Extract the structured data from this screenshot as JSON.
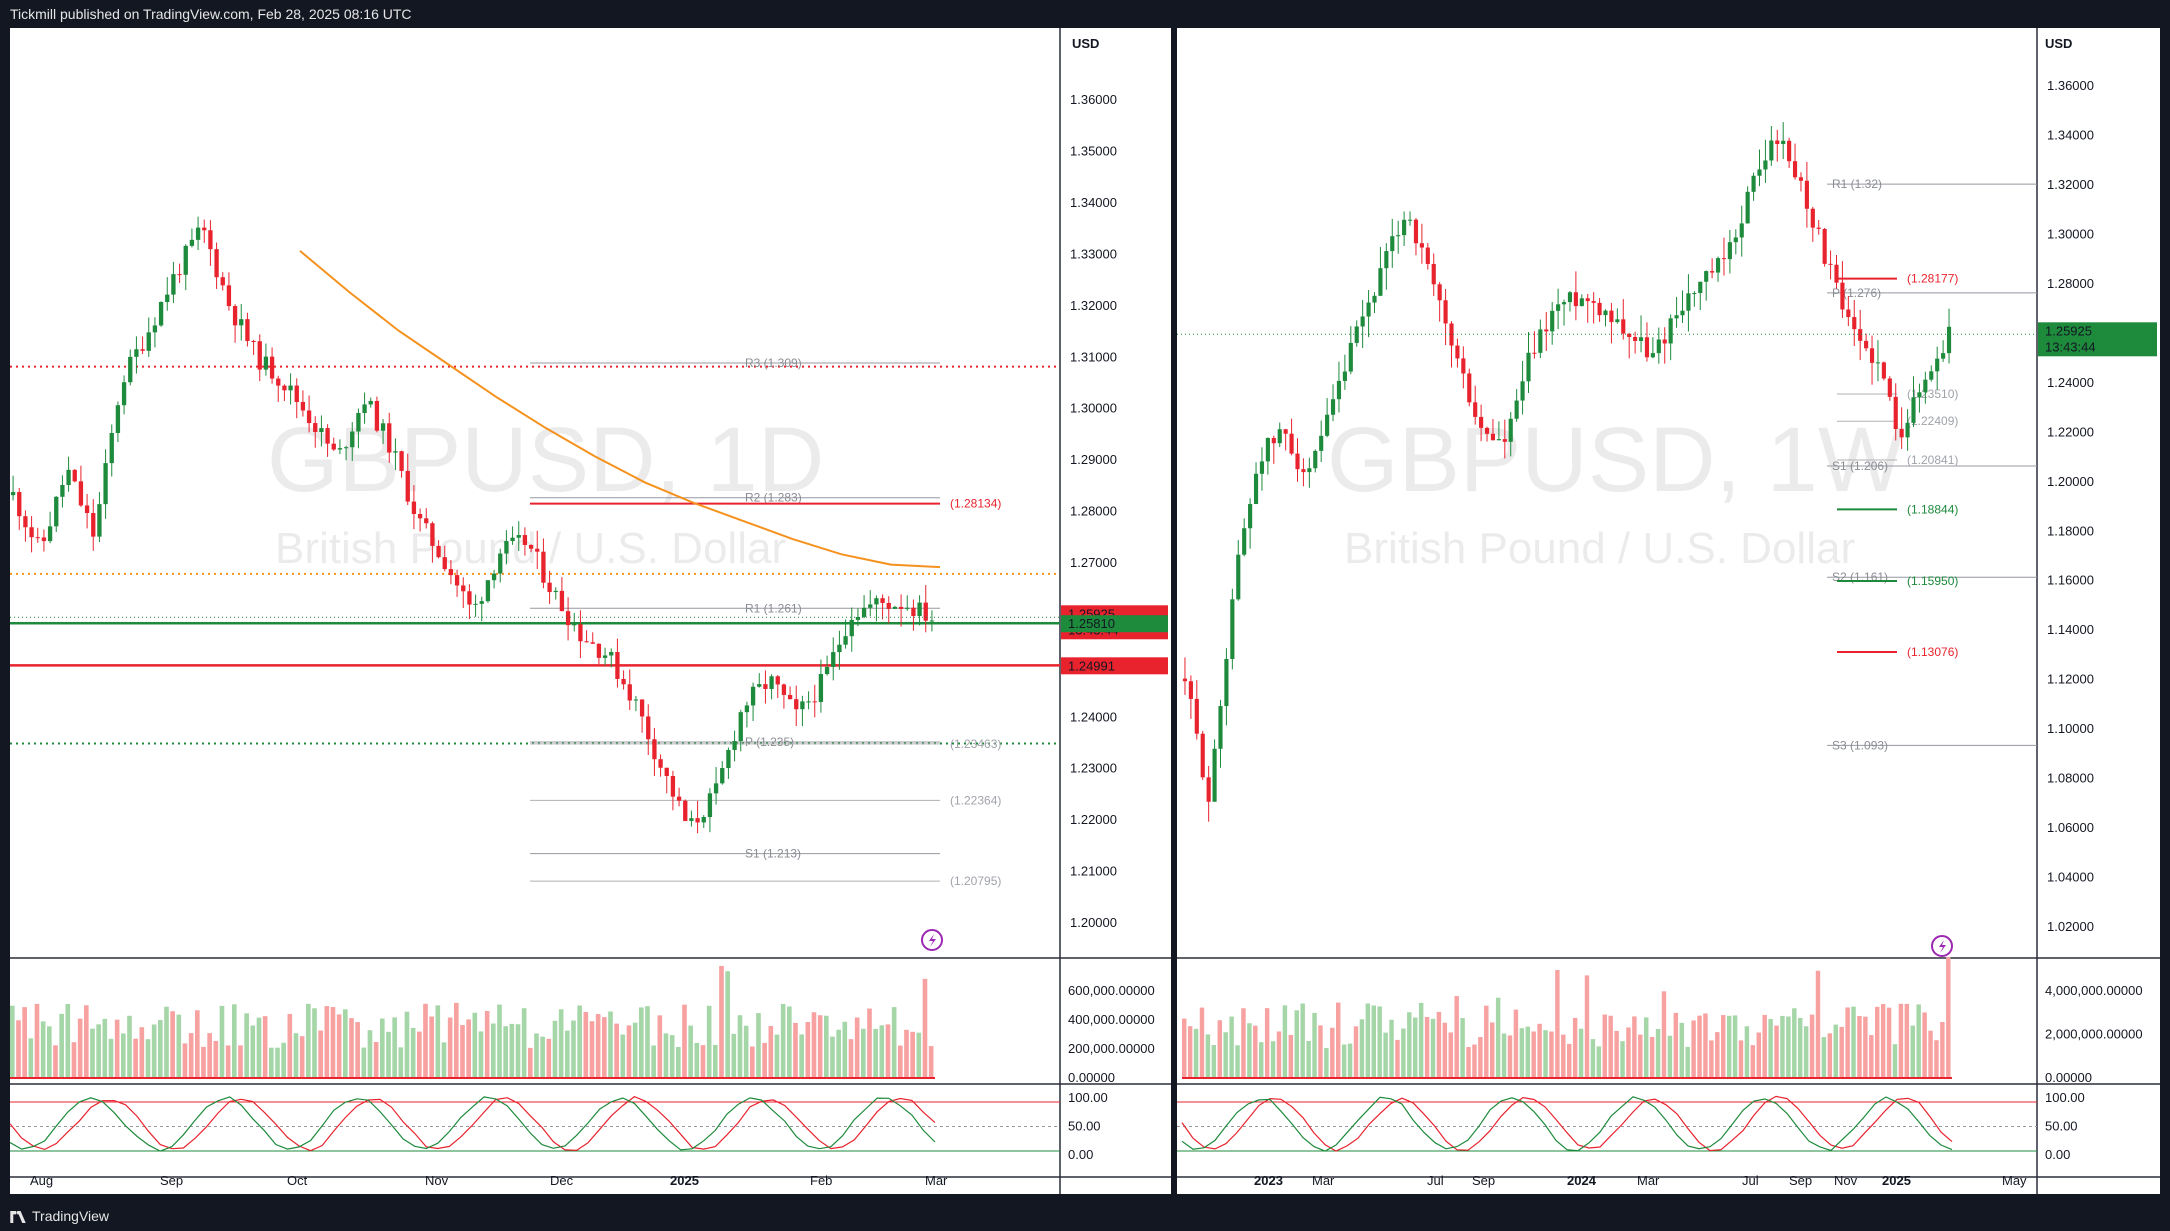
{
  "header": {
    "publisher": "Tickmill published on TradingView.com, Feb 28, 2025 08:16 UTC"
  },
  "footer": {
    "brand": "TradingView"
  },
  "colors": {
    "up": "#1e8a3c",
    "down": "#e8232e",
    "ma": "#f5921e",
    "vol_up": "#a5d6a7",
    "vol_down": "#f7a1a1",
    "background": "#ffffff",
    "frame": "#131722"
  },
  "icons": {
    "publish_badge": "lightning-icon",
    "arrow_up": "arrow-up-icon",
    "arrow_down": "arrow-down-icon",
    "brand": "tradingview-logo-icon"
  },
  "charts": [
    {
      "id": "daily",
      "watermark": {
        "symbol": "GBPUSD, 1D",
        "name": "British Pound / U.S. Dollar"
      },
      "currency": "USD",
      "price_ticks": [
        "1.36000",
        "1.35000",
        "1.34000",
        "1.33000",
        "1.32000",
        "1.31000",
        "1.30000",
        "1.29000",
        "1.28000",
        "1.27000",
        "1.26000",
        "1.25000",
        "1.24000",
        "1.23000",
        "1.22000",
        "1.21000",
        "1.20000"
      ],
      "ylim": [
        1.193,
        1.368
      ],
      "volume_ticks": [
        "600,000.00000",
        "400,000.00000",
        "200,000.00000",
        "0.00000"
      ],
      "osc_ticks": [
        "100.00",
        "50.00",
        "0.00"
      ],
      "time_labels": [
        "Aug",
        "Sep",
        "Oct",
        "Nov",
        "Dec",
        "2025",
        "Feb",
        "Mar"
      ],
      "price_badges": [
        {
          "price": "1.25925",
          "countdown": "13:43:44",
          "color": "#e8232e"
        },
        {
          "price": "1.25810",
          "color": "#1e8a3c"
        },
        {
          "price": "1.24991",
          "color": "#e8232e"
        }
      ],
      "pivots": [
        {
          "label": "R3 (1.309)",
          "value": 1.3087
        },
        {
          "label": "R2 (1.283)",
          "value": 1.2825
        },
        {
          "label": "R1 (1.261)",
          "value": 1.261
        },
        {
          "label": "P (1.235)",
          "value": 1.235
        },
        {
          "label": "S1 (1.213)",
          "value": 1.2133
        }
      ],
      "levels": [
        {
          "label": "(1.28134)",
          "value": 1.28134,
          "color": "#e8232e"
        },
        {
          "label": "(1.23463)",
          "value": 1.23463,
          "color": "#b0b0b0"
        },
        {
          "label": "(1.22364)",
          "value": 1.22364,
          "color": "#b0b0b0"
        },
        {
          "label": "(1.20795)",
          "value": 1.20795,
          "color": "#b0b0b0"
        }
      ],
      "support_lines": [
        1.2581,
        1.2499
      ],
      "dotted_lines": [
        1.308,
        1.2677,
        1.2347
      ],
      "moving_average_last": 1.269,
      "last_close": 1.25925,
      "series": {
        "x_dates": [
          "2024-07-29",
          "2024-08-30",
          "2024-09-30",
          "2024-10-31",
          "2024-11-29",
          "2024-12-31",
          "2025-01-31",
          "2025-02-28"
        ],
        "close": [
          1.286,
          1.273,
          1.313,
          1.29,
          1.27,
          1.253,
          1.243,
          1.25925
        ]
      }
    },
    {
      "id": "weekly",
      "watermark": {
        "symbol": "GBPUSD, 1W",
        "name": "British Pound / U.S. Dollar"
      },
      "currency": "USD",
      "price_ticks": [
        "1.36000",
        "1.34000",
        "1.32000",
        "1.30000",
        "1.28000",
        "1.26000",
        "1.24000",
        "1.22000",
        "1.20000",
        "1.18000",
        "1.16000",
        "1.14000",
        "1.12000",
        "1.10000",
        "1.08000",
        "1.06000",
        "1.04000",
        "1.02000"
      ],
      "ylim": [
        1.007,
        1.371
      ],
      "volume_ticks": [
        "4,000,000.00000",
        "2,000,000.00000",
        "0.00000"
      ],
      "osc_ticks": [
        "100.00",
        "50.00",
        "0.00"
      ],
      "time_labels": [
        "2023",
        "Mar",
        "Jul",
        "Sep",
        "2024",
        "Mar",
        "Jul",
        "Sep",
        "Nov",
        "2025",
        "May"
      ],
      "price_badges": [
        {
          "price": "1.25925",
          "countdown": "13:43:44",
          "color": "#1e8a3c"
        }
      ],
      "pivots": [
        {
          "label": "R1 (1.32)",
          "value": 1.32
        },
        {
          "label": "P (1.276)",
          "value": 1.276
        },
        {
          "label": "S1 (1.206)",
          "value": 1.206
        },
        {
          "label": "S2 (1.161)",
          "value": 1.161
        },
        {
          "label": "S3 (1.093)",
          "value": 1.093
        }
      ],
      "levels": [
        {
          "label": "(1.28177)",
          "value": 1.28177,
          "color": "#e8232e"
        },
        {
          "label": "(1.23510)",
          "value": 1.2351,
          "color": "#b0b0b0"
        },
        {
          "label": "(1.22409)",
          "value": 1.22409,
          "color": "#b0b0b0"
        },
        {
          "label": "(1.20841)",
          "value": 1.20841,
          "color": "#b0b0b0"
        },
        {
          "label": "(1.18844)",
          "value": 1.18844,
          "color": "#1e8a3c"
        },
        {
          "label": "(1.15950)",
          "value": 1.1595,
          "color": "#1e8a3c"
        },
        {
          "label": "(1.13076)",
          "value": 1.13076,
          "color": "#e8232e"
        }
      ],
      "last_close": 1.25925
    }
  ],
  "chart_data": [
    {
      "type": "line",
      "title": "GBPUSD, 1D",
      "subtitle": "British Pound / U.S. Dollar",
      "ylabel": "USD",
      "x": [
        "2024-07-29",
        "2024-08-30",
        "2024-09-30",
        "2024-10-31",
        "2024-11-29",
        "2024-12-31",
        "2025-01-31",
        "2025-02-28"
      ],
      "series": [
        {
          "values": [
            1.286,
            1.273,
            1.313,
            1.29,
            1.27,
            1.253,
            1.243,
            1.25925
          ]
        }
      ],
      "ylim": [
        1.193,
        1.368
      ],
      "grid": false
    },
    {
      "type": "line",
      "title": "GBPUSD, 1W",
      "subtitle": "British Pound / U.S. Dollar",
      "ylabel": "USD",
      "x": [
        "2022-09-26",
        "2023-01-02",
        "2023-07-10",
        "2023-10-02",
        "2024-01-01",
        "2024-07-15",
        "2024-09-23",
        "2024-12-30",
        "2025-02-24"
      ],
      "series": [
        {
          "values": [
            1.069,
            1.208,
            1.31,
            1.215,
            1.273,
            1.29,
            1.34,
            1.252,
            1.25925
          ]
        }
      ],
      "ylim": [
        1.007,
        1.371
      ],
      "grid": false
    }
  ]
}
